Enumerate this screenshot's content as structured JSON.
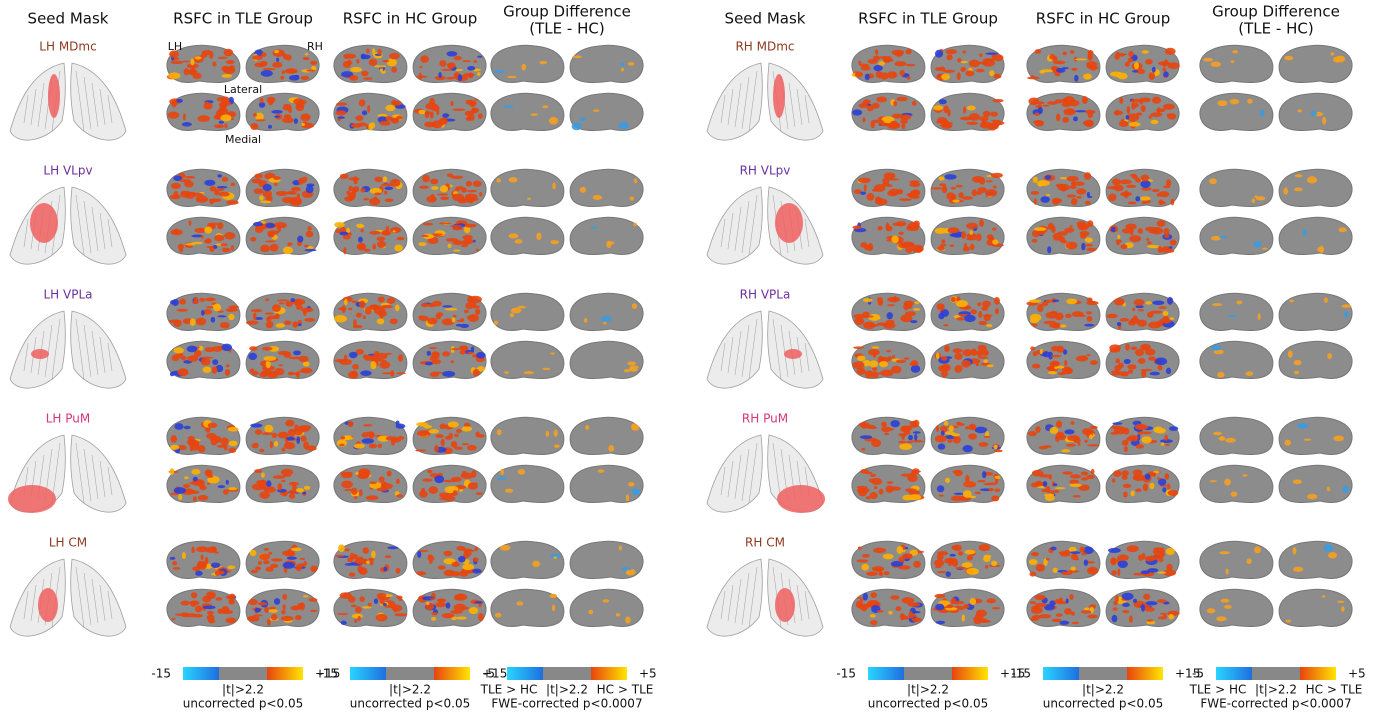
{
  "headers": {
    "seed": "Seed Mask",
    "tle": "RSFC in TLE Group",
    "hc": "RSFC in HC Group",
    "diff_line1": "Group Difference",
    "diff_line2": "(TLE - HC)"
  },
  "orientation": {
    "left": "LH",
    "right": "RH",
    "lateral": "Lateral",
    "medial": "Medial"
  },
  "panels": [
    {
      "side": "left",
      "seeds": [
        {
          "label": "LH MDmc",
          "color": "#8b3a1f"
        },
        {
          "label": "LH VLpv",
          "color": "#6b2fa0"
        },
        {
          "label": "LH VPLa",
          "color": "#6b2fa0"
        },
        {
          "label": "LH PuM",
          "color": "#d6337f"
        },
        {
          "label": "LH CM",
          "color": "#8b3a1f"
        }
      ]
    },
    {
      "side": "right",
      "seeds": [
        {
          "label": "RH MDmc",
          "color": "#8b3a1f"
        },
        {
          "label": "RH VLpv",
          "color": "#6b2fa0"
        },
        {
          "label": "RH VPLa",
          "color": "#6b2fa0"
        },
        {
          "label": "RH PuM",
          "color": "#d6337f"
        },
        {
          "label": "RH CM",
          "color": "#8b3a1f"
        }
      ]
    }
  ],
  "colorbars": {
    "group": {
      "min": "-15",
      "max": "+15",
      "threshold": "|t|>2.2",
      "note": "uncorrected p<0.05"
    },
    "diff": {
      "min": "-5",
      "max": "+5",
      "left": "TLE > HC",
      "threshold": "|t|>2.2",
      "right": "HC > TLE",
      "note": "FWE-corrected p<0.0007"
    }
  }
}
